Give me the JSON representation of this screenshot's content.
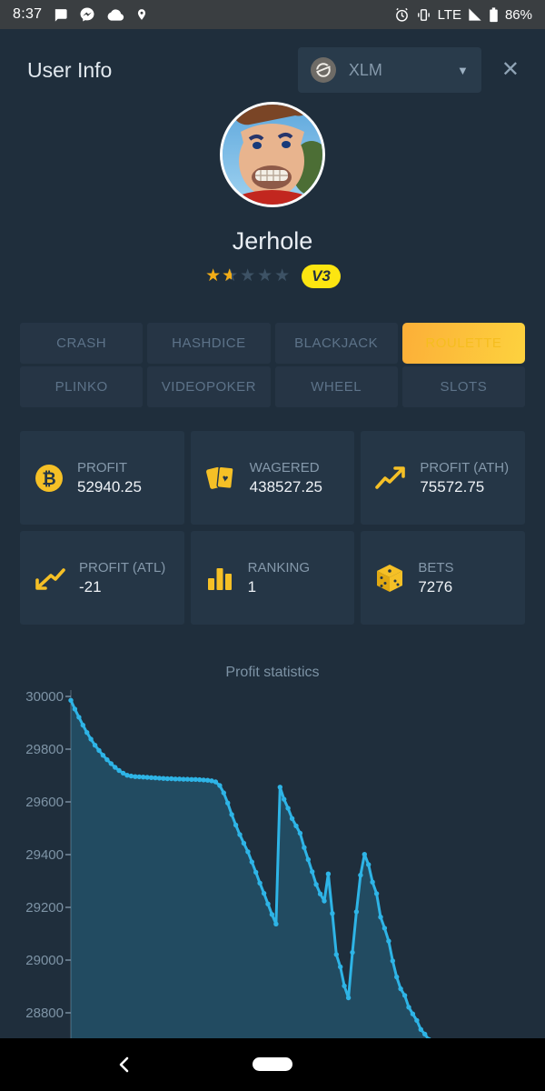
{
  "status_bar": {
    "time": "8:37",
    "network": "LTE",
    "battery": "86%",
    "left_icons": [
      "chat-icon",
      "messenger-icon",
      "cloud-icon",
      "location-icon"
    ],
    "right_icons": [
      "alarm-icon",
      "vibrate-icon",
      "signal-icon",
      "battery-icon"
    ]
  },
  "header": {
    "title": "User Info",
    "currency": {
      "code": "XLM",
      "icon": "stellar-coin-icon"
    },
    "close_label": "✕"
  },
  "profile": {
    "username": "Jerhole",
    "rating": 1.5,
    "stars_total": 5,
    "level_badge": "V3"
  },
  "tabs": [
    {
      "label": "CRASH",
      "selected": false
    },
    {
      "label": "HASHDICE",
      "selected": false
    },
    {
      "label": "BLACKJACK",
      "selected": false
    },
    {
      "label": "ROULETTE",
      "selected": true
    },
    {
      "label": "PLINKO",
      "selected": false
    },
    {
      "label": "VIDEOPOKER",
      "selected": false
    },
    {
      "label": "WHEEL",
      "selected": false
    },
    {
      "label": "SLOTS",
      "selected": false
    }
  ],
  "stats": [
    {
      "id": "profit",
      "icon": "bitcoin-icon",
      "label": "PROFIT",
      "value": "52940.25"
    },
    {
      "id": "wagered",
      "icon": "cards-icon",
      "label": "WAGERED",
      "value": "438527.25"
    },
    {
      "id": "profit-ath",
      "icon": "trend-up-icon",
      "label": "PROFIT (ATH)",
      "value": "75572.75"
    },
    {
      "id": "profit-atl",
      "icon": "trend-down-icon",
      "label": "PROFIT (ATL)",
      "value": "-21"
    },
    {
      "id": "ranking",
      "icon": "bar-chart-icon",
      "label": "RANKING",
      "value": "1"
    },
    {
      "id": "bets",
      "icon": "dice-icon",
      "label": "BETS",
      "value": "7276"
    }
  ],
  "chart_data": {
    "type": "area",
    "title": "Profit statistics",
    "xlabel": "",
    "ylabel": "",
    "yticks": [
      30000,
      29800,
      29600,
      29400,
      29200,
      29000,
      28800
    ],
    "grid": false,
    "legend": "none",
    "line_color": "#2eb4e6",
    "fill_color": "rgba(46,180,230,0.22)",
    "values": [
      29985,
      29952,
      29921,
      29891,
      29863,
      29838,
      29815,
      29795,
      29777,
      29760,
      29745,
      29731,
      29719,
      29709,
      29701,
      29698,
      29696,
      29695,
      29694,
      29693,
      29692,
      29691,
      29690,
      29689,
      29688,
      29688,
      29687,
      29687,
      29686,
      29686,
      29685,
      29685,
      29684,
      29683,
      29682,
      29680,
      29676,
      29662,
      29634,
      29596,
      29552,
      29512,
      29476,
      29443,
      29411,
      29372,
      29333,
      29292,
      29253,
      29213,
      29173,
      29137,
      29656,
      29610,
      29576,
      29537,
      29509,
      29481,
      29427,
      29381,
      29335,
      29287,
      29251,
      29224,
      29327,
      29177,
      29021,
      28974,
      28902,
      28857,
      29029,
      29183,
      29322,
      29401,
      29362,
      29296,
      29252,
      29163,
      29121,
      29072,
      28997,
      28936,
      28891,
      28866,
      28821,
      28796,
      28771,
      28737,
      28719,
      28699,
      28676,
      28655
    ]
  },
  "colors": {
    "page_bg": "#1f2e3c",
    "card_bg": "#253646",
    "accent_yellow": "#f5c026",
    "selected_tab_gradient": [
      "#fcaf38",
      "#fdd23e"
    ],
    "chart_line": "#2eb4e6",
    "badge_yellow": "#fce511"
  }
}
